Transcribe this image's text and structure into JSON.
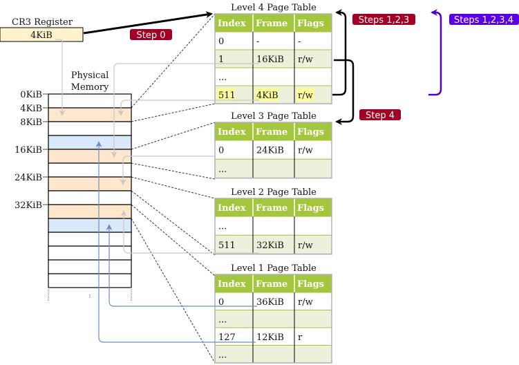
{
  "cr3": {
    "title": "CR3 Register",
    "value": "4KiB"
  },
  "memory": {
    "title_line1": "Physical",
    "title_line2": "Memory",
    "labels": [
      "0KiB",
      "4KiB",
      "8KiB",
      "16KiB",
      "24KiB",
      "32KiB"
    ],
    "blocks": [
      "white",
      "orange",
      "white",
      "blue",
      "orange",
      "white",
      "orange",
      "white",
      "orange",
      "blue",
      "white",
      "white",
      "white",
      "white"
    ]
  },
  "columns": [
    "Index",
    "Frame",
    "Flags"
  ],
  "tables": [
    {
      "title": "Level 4 Page Table",
      "rows": [
        [
          "0",
          "-",
          "-"
        ],
        [
          "1",
          "16KiB",
          "r/w"
        ],
        [
          "...",
          "",
          ""
        ],
        [
          "511",
          "4KiB",
          "r/w"
        ]
      ],
      "highlight_row": 3
    },
    {
      "title": "Level 3 Page Table",
      "rows": [
        [
          "0",
          "24KiB",
          "r/w"
        ],
        [
          "...",
          "",
          ""
        ]
      ]
    },
    {
      "title": "Level 2 Page Table",
      "rows": [
        [
          "...",
          "",
          ""
        ],
        [
          "511",
          "32KiB",
          "r/w"
        ]
      ]
    },
    {
      "title": "Level 1 Page Table",
      "rows": [
        [
          "0",
          "36KiB",
          "r/w"
        ],
        [
          "...",
          "",
          ""
        ],
        [
          "127",
          "12KiB",
          "r"
        ],
        [
          "...",
          "",
          ""
        ]
      ]
    }
  ],
  "steps": {
    "step0": "Step 0",
    "steps123": "Steps 1,2,3",
    "step4": "Step 4",
    "steps1234": "Steps 1,2,3,4"
  },
  "colors": {
    "header": "#a4c63c",
    "alt_row": "#ebf1da",
    "highlight": "#ffff99",
    "orange_block": "#ffe6cc",
    "blue_block": "#dae8fc",
    "step_badge": "#a20025",
    "step_badge_blue": "#5a00e6",
    "blue_arrow": "#6c8ebf"
  }
}
